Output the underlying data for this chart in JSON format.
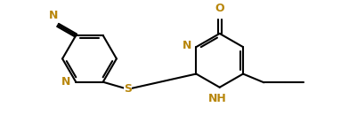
{
  "background_color": "#ffffff",
  "line_color": "#000000",
  "heteroatom_color": "#b8860b",
  "bond_lw": 1.5,
  "figsize": [
    3.92,
    1.47
  ],
  "dpi": 100,
  "xlim": [
    0.0,
    10.0
  ],
  "ylim": [
    0.5,
    4.2
  ]
}
